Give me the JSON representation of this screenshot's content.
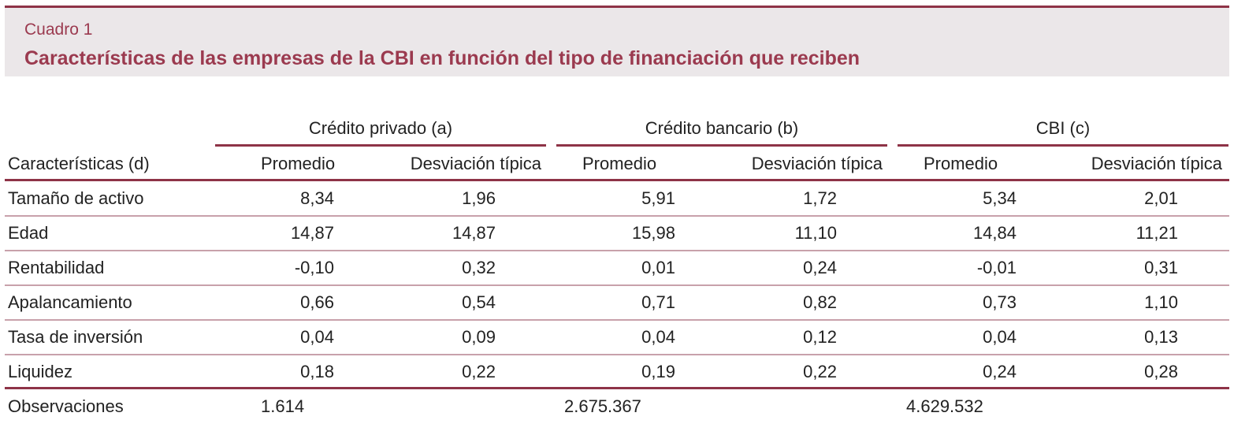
{
  "header": {
    "label": "Cuadro 1",
    "title": "Características de las empresas de la CBI en función del tipo de financiación que reciben"
  },
  "table": {
    "groups": [
      "Crédito privado (a)",
      "Crédito bancario (b)",
      "CBI (c)"
    ],
    "row_header": "Características (d)",
    "subheaders": [
      "Promedio",
      "Desviación típica",
      "Promedio",
      "Desviación típica",
      "Promedio",
      "Desviación típica"
    ],
    "rows": [
      [
        "Tamaño de activo",
        "8,34",
        "1,96",
        "5,91",
        "1,72",
        "5,34",
        "2,01"
      ],
      [
        "Edad",
        "14,87",
        "14,87",
        "15,98",
        "11,10",
        "14,84",
        "11,21"
      ],
      [
        "Rentabilidad",
        "-0,10",
        "0,32",
        "0,01",
        "0,24",
        "-0,01",
        "0,31"
      ],
      [
        "Apalancamiento",
        "0,66",
        "0,54",
        "0,71",
        "0,82",
        "0,73",
        "1,10"
      ],
      [
        "Tasa de inversión",
        "0,04",
        "0,09",
        "0,04",
        "0,12",
        "0,04",
        "0,13"
      ],
      [
        "Liquidez",
        "0,18",
        "0,22",
        "0,19",
        "0,22",
        "0,24",
        "0,28"
      ]
    ],
    "footer": [
      "Observaciones",
      "1.614",
      "2.675.367",
      "4.629.532"
    ]
  }
}
